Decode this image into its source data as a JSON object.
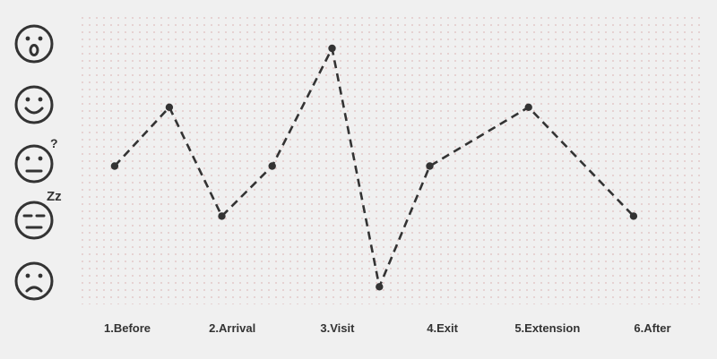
{
  "chart_data": {
    "type": "line",
    "title": "",
    "xlabel": "",
    "ylabel": "",
    "categories": [
      "1.Before",
      "2.Arrival",
      "3.Visit",
      "4.Exit",
      "5.Extension",
      "6.After"
    ],
    "y_levels": [
      {
        "value": 5,
        "icon": "surprised-face-icon"
      },
      {
        "value": 4,
        "icon": "happy-face-icon"
      },
      {
        "value": 3,
        "icon": "confused-face-icon"
      },
      {
        "value": 2,
        "icon": "bored-sleepy-face-icon"
      },
      {
        "value": 1,
        "icon": "sad-face-icon"
      }
    ],
    "ylim": [
      1,
      5
    ],
    "x_range": [
      0.5,
      6.5
    ],
    "series": [
      {
        "points": [
          {
            "x": 0.88,
            "y": 3
          },
          {
            "x": 1.4,
            "y": 4
          },
          {
            "x": 1.9,
            "y": 2.15
          },
          {
            "x": 2.38,
            "y": 3
          },
          {
            "x": 2.95,
            "y": 5
          },
          {
            "x": 3.4,
            "y": 0.95
          },
          {
            "x": 3.88,
            "y": 3
          },
          {
            "x": 4.82,
            "y": 4
          },
          {
            "x": 5.82,
            "y": 2.15
          }
        ],
        "style": "dashed",
        "color": "#333333"
      }
    ],
    "grid": "dotted",
    "colors": {
      "line": "#333333",
      "icons": "#333333",
      "grid_dot": "#e3c9c9",
      "background": "#f0f0f0"
    }
  }
}
